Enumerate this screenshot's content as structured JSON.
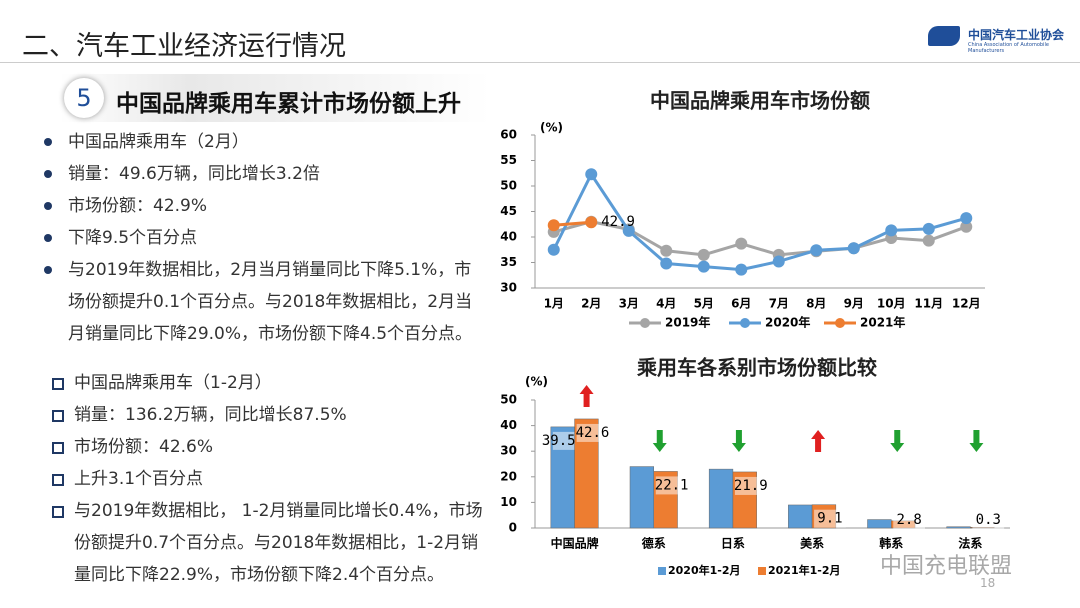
{
  "header": {
    "title": "二、汽车工业经济运行情况",
    "logo": "中国汽车工业协会",
    "logo_en": "China Association of Automobile Manufacturers"
  },
  "section": {
    "number": "5",
    "title": "中国品牌乘用车累计市场份额上升"
  },
  "bullets_feb": [
    "中国品牌乘用车（2月）",
    "销量：49.6万辆，同比增长3.2倍",
    "市场份额：42.9%",
    "下降9.5个百分点",
    "与2019年数据相比，2月当月销量同比下降5.1%，市场份额提升0.1个百分点。与2018年数据相比，2月当月销量同比下降29.0%，市场份额下降4.5个百分点。"
  ],
  "bullets_jan_feb": [
    "中国品牌乘用车（1-2月）",
    "销量：136.2万辆，同比增长87.5%",
    "市场份额：42.6%",
    "上升3.1个百分点",
    "与2019年数据相比， 1-2月销量同比增长0.4%，市场份额提升0.7个百分点。与2018年数据相比，1-2月销量同比下降22.9%，市场份额下降2.4个百分点。"
  ],
  "page_number": "18",
  "watermark": "中国充电联盟",
  "chart_data": [
    {
      "type": "line",
      "title": "中国品牌乘用车市场份额",
      "y_label": "(%)",
      "categories": [
        "1月",
        "2月",
        "3月",
        "4月",
        "5月",
        "6月",
        "7月",
        "8月",
        "9月",
        "10月",
        "11月",
        "12月"
      ],
      "series": [
        {
          "name": "2019年",
          "color": "#a5a5a5",
          "values": [
            41,
            43,
            41.5,
            37.3,
            36.5,
            38.7,
            36.5,
            37.2,
            37.8,
            39.8,
            39.3,
            42
          ]
        },
        {
          "name": "2020年",
          "color": "#5b9bd5",
          "values": [
            37.5,
            52.3,
            41.2,
            34.8,
            34.2,
            33.6,
            35.2,
            37.4,
            37.8,
            41.3,
            41.6,
            43.7
          ]
        },
        {
          "name": "2021年",
          "color": "#ed7d31",
          "values": [
            42.3,
            42.9,
            null,
            null,
            null,
            null,
            null,
            null,
            null,
            null,
            null,
            null
          ],
          "value_labels": [
            null,
            "42.9",
            null,
            null,
            null,
            null,
            null,
            null,
            null,
            null,
            null,
            null
          ]
        }
      ],
      "ylim": [
        30,
        60
      ],
      "yticks": [
        30,
        35,
        40,
        45,
        50,
        55,
        60
      ],
      "grid": false,
      "legend": "bottom"
    },
    {
      "type": "bar",
      "title": "乘用车各系别市场份额比较",
      "y_label": "(%)",
      "categories": [
        "中国品牌",
        "德系",
        "日系",
        "美系",
        "韩系",
        "法系"
      ],
      "series": [
        {
          "name": "2020年1-2月",
          "color": "#5b9bd5",
          "values": [
            39.5,
            24,
            23,
            9,
            3.3,
            0.5
          ],
          "value_labels": [
            "39.5",
            null,
            null,
            null,
            null,
            null
          ]
        },
        {
          "name": "2021年1-2月",
          "color": "#ed7d31",
          "values": [
            42.6,
            22.1,
            21.9,
            9.1,
            2.8,
            0.3
          ],
          "value_labels": [
            "42.6",
            "22.1",
            "21.9",
            "9.1",
            "2.8",
            "0.3"
          ]
        }
      ],
      "ylim": [
        0,
        50
      ],
      "yticks": [
        0,
        10,
        20,
        30,
        40,
        50
      ],
      "grid": false,
      "legend": "bottom"
    }
  ]
}
